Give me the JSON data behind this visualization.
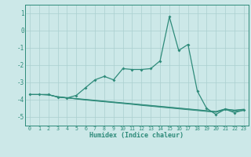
{
  "x": [
    0,
    1,
    2,
    3,
    4,
    5,
    6,
    7,
    8,
    9,
    10,
    11,
    12,
    13,
    14,
    15,
    16,
    17,
    18,
    19,
    20,
    21,
    22,
    23
  ],
  "line1": [
    -3.7,
    -3.7,
    -3.7,
    -3.85,
    -3.9,
    -3.75,
    -3.3,
    -2.85,
    -2.65,
    -2.85,
    -2.2,
    -2.25,
    -2.25,
    -2.2,
    -1.75,
    0.8,
    -1.15,
    -0.8,
    -3.5,
    -4.5,
    -4.85,
    -4.55,
    -4.75,
    -4.6
  ],
  "line2": [
    -3.7,
    -3.7,
    -3.7,
    -3.85,
    -3.9,
    -3.95,
    -4.0,
    -4.05,
    -4.1,
    -4.15,
    -4.2,
    -4.25,
    -4.3,
    -4.35,
    -4.4,
    -4.45,
    -4.5,
    -4.55,
    -4.6,
    -4.65,
    -4.7,
    -4.55,
    -4.6,
    -4.55
  ],
  "line3": [
    -3.7,
    -3.7,
    -3.72,
    -3.82,
    -3.88,
    -3.93,
    -3.98,
    -4.03,
    -4.08,
    -4.13,
    -4.18,
    -4.23,
    -4.28,
    -4.33,
    -4.38,
    -4.43,
    -4.48,
    -4.53,
    -4.58,
    -4.63,
    -4.68,
    -4.53,
    -4.62,
    -4.57
  ],
  "line4": [
    -3.7,
    -3.7,
    -3.73,
    -3.83,
    -3.89,
    -3.96,
    -4.02,
    -4.07,
    -4.12,
    -4.17,
    -4.22,
    -4.27,
    -4.33,
    -4.38,
    -4.43,
    -4.48,
    -4.53,
    -4.58,
    -4.63,
    -4.68,
    -4.73,
    -4.58,
    -4.67,
    -4.62
  ],
  "line_color": "#2e8b7a",
  "bg_color": "#cce8e8",
  "grid_color": "#aacfcf",
  "xlabel": "Humidex (Indice chaleur)",
  "ylim": [
    -5.5,
    1.5
  ],
  "yticks": [
    1,
    0,
    -1,
    -2,
    -3,
    -4,
    -5
  ],
  "xticks": [
    0,
    1,
    2,
    3,
    4,
    5,
    6,
    7,
    8,
    9,
    10,
    11,
    12,
    13,
    14,
    15,
    16,
    17,
    18,
    19,
    20,
    21,
    22,
    23
  ]
}
